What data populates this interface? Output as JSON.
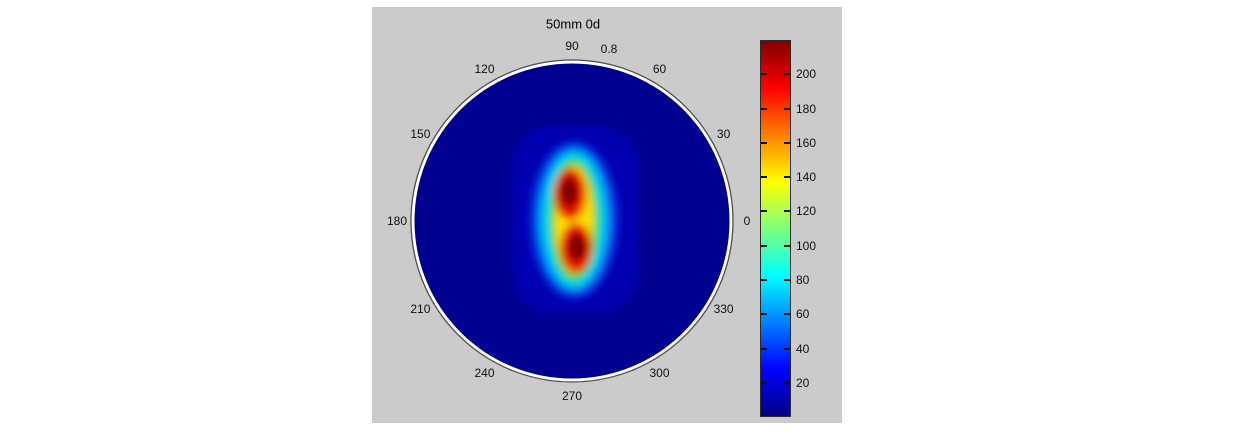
{
  "figure": {
    "title": "50mm 0d",
    "panel_background": "#cbcbcb",
    "page_background": "#ffffff"
  },
  "polar": {
    "angle_labels": [
      "0",
      "30",
      "60",
      "90",
      "120",
      "150",
      "180",
      "210",
      "240",
      "270",
      "300",
      "330"
    ],
    "radial_label": "0.8",
    "ring_color": "#ffffff",
    "outline_color": "#4d4d4d",
    "background_fill": "#000090"
  },
  "colorbar": {
    "ticks": [
      20,
      40,
      60,
      80,
      100,
      120,
      140,
      160,
      180,
      200
    ],
    "vmin": 0,
    "vmax": 220,
    "colormap": "jet",
    "gradient_stops": [
      {
        "at": 0.0,
        "color": "#000083"
      },
      {
        "at": 0.125,
        "color": "#0000ff"
      },
      {
        "at": 0.375,
        "color": "#00ffff"
      },
      {
        "at": 0.5,
        "color": "#7dff7d"
      },
      {
        "at": 0.625,
        "color": "#ffff00"
      },
      {
        "at": 0.875,
        "color": "#ff0000"
      },
      {
        "at": 1.0,
        "color": "#800000"
      }
    ]
  },
  "chart_data": {
    "type": "heatmap",
    "projection": "polar",
    "title": "50mm 0d",
    "angle_ticks_deg": [
      0,
      30,
      60,
      90,
      120,
      150,
      180,
      210,
      240,
      270,
      300,
      330
    ],
    "radial_axis_outer_label": "0.8",
    "colormap": "jet",
    "value_range": [
      0,
      220
    ],
    "colorbar_tick_values": [
      20,
      40,
      60,
      80,
      100,
      120,
      140,
      160,
      180,
      200
    ],
    "background_value_approx": 5,
    "peaks": [
      {
        "lobe": "upper",
        "angle_deg": 98,
        "radius_norm": 0.15,
        "peak_value_approx": 215
      },
      {
        "lobe": "lower",
        "angle_deg": 281,
        "radius_norm": 0.13,
        "peak_value_approx": 215
      }
    ],
    "pattern": "vertically elongated two-lobed (figure-eight) hotspot slightly left of disc center on uniform dark-blue background",
    "legend_position": "colorbar-right",
    "grid": false
  }
}
